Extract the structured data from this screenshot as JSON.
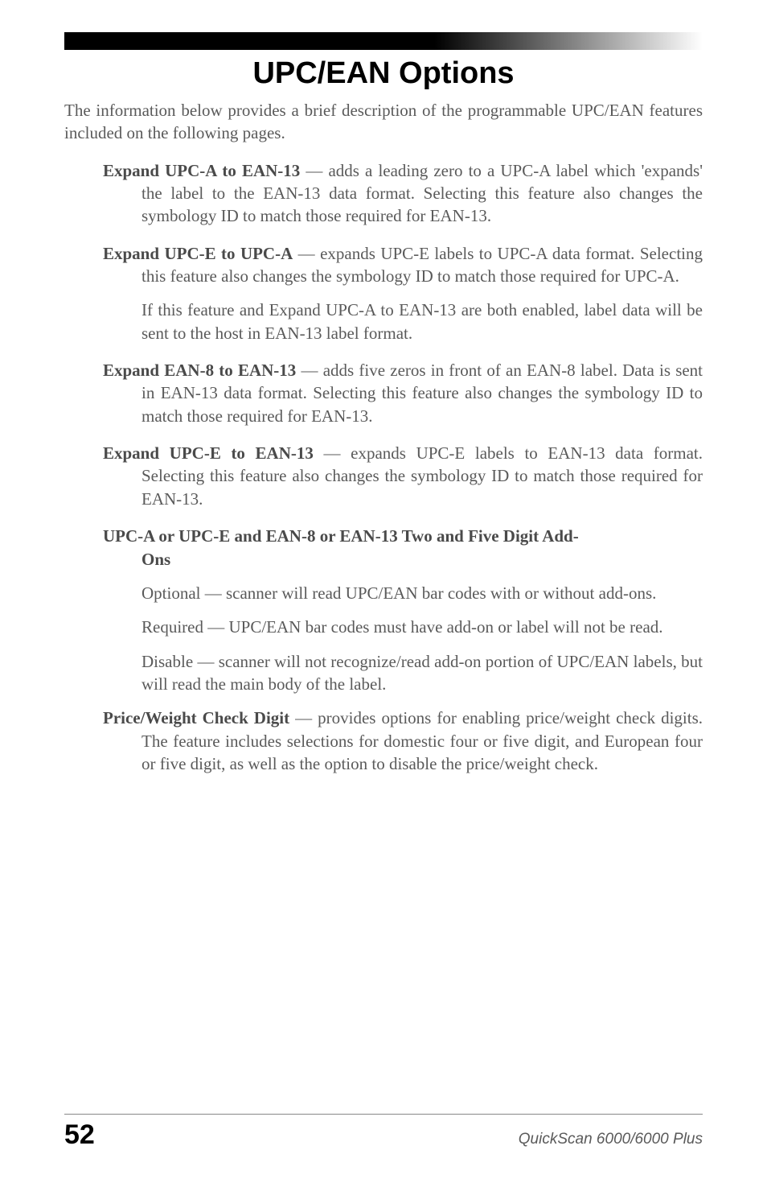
{
  "title": "UPC/EAN Options",
  "intro": "The information below provides a brief description of the programmable UPC/EAN features included on the following pages.",
  "entries": [
    {
      "bold": "Expand UPC-A to EAN-13",
      "dash": " — ",
      "rest": "adds a leading zero to a UPC-A label which 'expands' the label to the EAN-13 data format.  Selecting this feature also changes the symbology ID to match those required for EAN-13."
    },
    {
      "bold": "Expand UPC-E to UPC-A",
      "dash": " — ",
      "rest": "expands UPC-E labels to UPC-A data format.  Selecting this feature also changes the symbology ID to match those required for UPC-A.",
      "extra": "If this feature and Expand UPC-A to EAN-13 are both enabled, label data will be sent to the host in EAN-13 label format."
    },
    {
      "bold": "Expand EAN-8 to EAN-13",
      "dash": " — ",
      "rest": "adds five zeros in front of an EAN-8 label.  Data is sent in EAN-13 data format.  Selecting this feature also changes the symbology ID to match those required for EAN-13."
    },
    {
      "bold": "Expand UPC-E to EAN-13",
      "dash": " — ",
      "rest": "expands UPC-E labels to EAN-13 data format.  Selecting this feature also changes the symbology ID to match those required for EAN-13."
    }
  ],
  "subheading_line1": "UPC-A or UPC-E and EAN-8 or EAN-13 Two and Five Digit Add-",
  "subheading_line2": "Ons",
  "subs": [
    "Optional — scanner will read UPC/EAN bar codes with or without add-ons.",
    "Required — UPC/EAN bar codes must have add-on or label will not be read.",
    "Disable — scanner will not recognize/read add-on portion of UPC/EAN labels, but will read the main body of the label."
  ],
  "price_bold": "Price/Weight Check Digit",
  "price_dash": " — ",
  "price_rest": "provides options for enabling price/weight check digits.  The feature includes selections for domestic four or five digit, and European four or five digit, as well as the option to disable the price/weight check.",
  "page_num": "52",
  "footer_right": "QuickScan 6000/6000 Plus"
}
